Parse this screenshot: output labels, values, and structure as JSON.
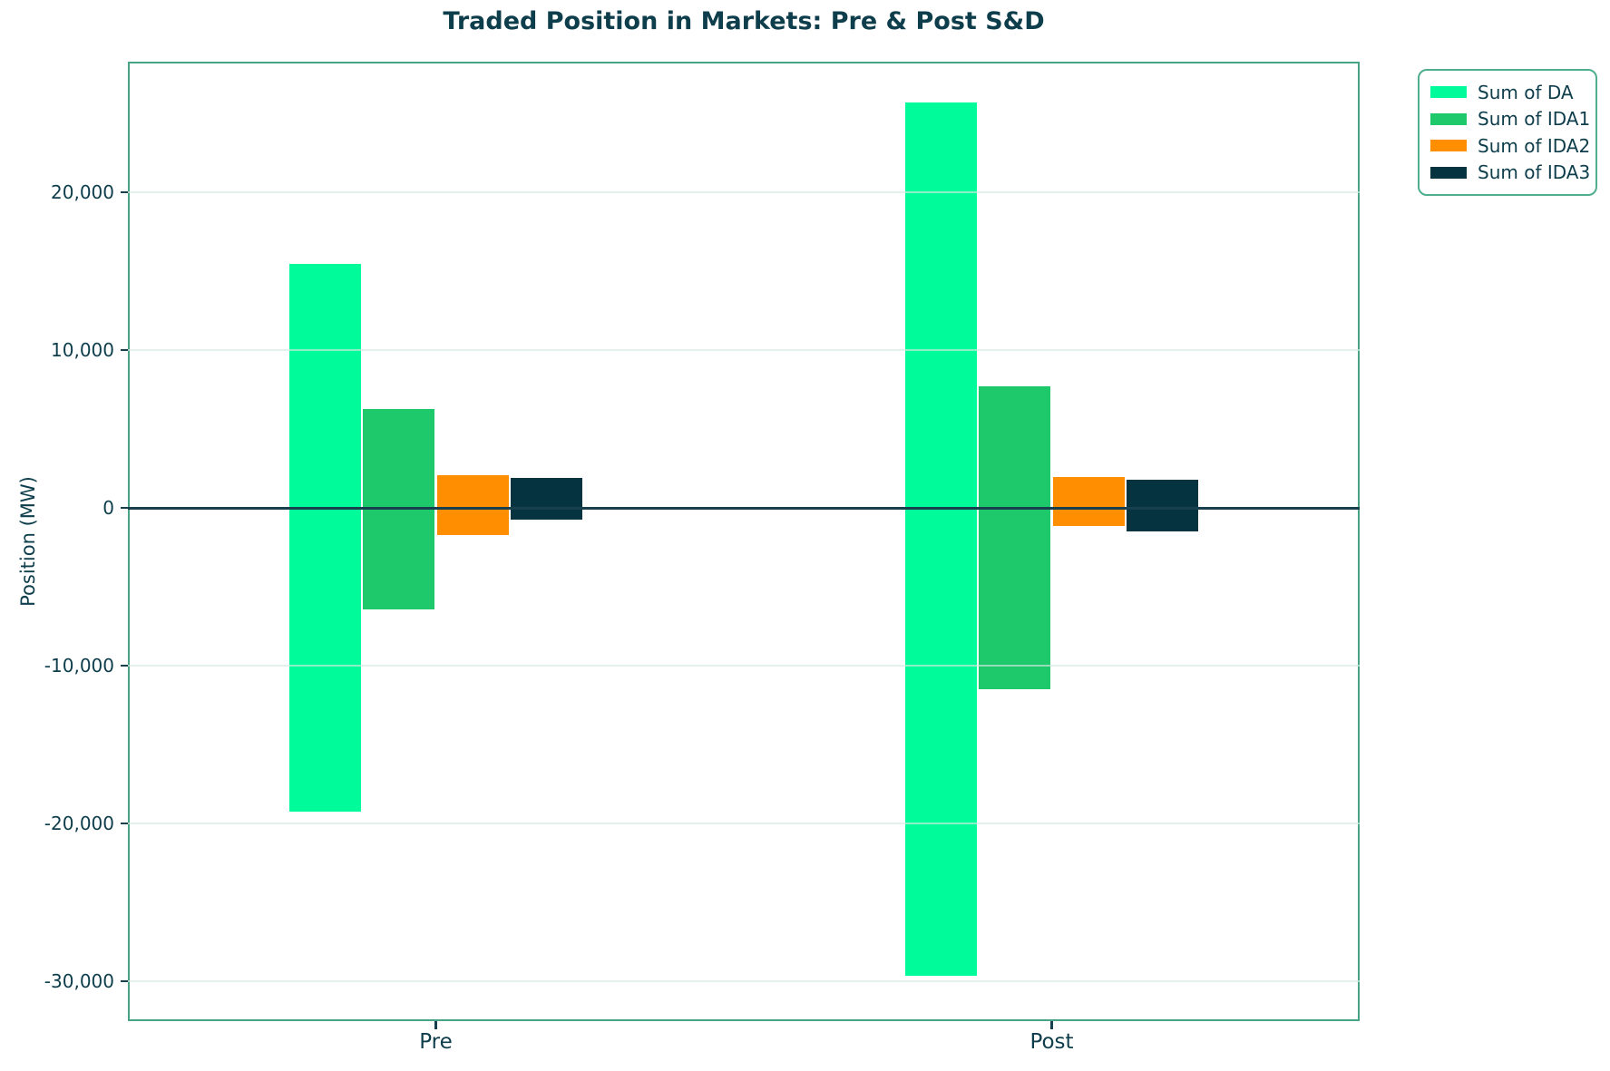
{
  "colors": {
    "text": "#0e3d4b",
    "spine": "#46a385",
    "grid": "#d5e8e1",
    "zero_line": "#173f4d",
    "legend_border": "#4fae8c",
    "background": "#ffffff"
  },
  "chart_data": {
    "type": "bar",
    "title": "Traded Position in Markets: Pre & Post S&D",
    "xlabel": "",
    "ylabel": "Position (MW)",
    "categories": [
      "Pre",
      "Post"
    ],
    "series": [
      {
        "name": "Sum of DA",
        "color": "#00fb9a",
        "values_pos": [
          15500,
          25700
        ],
        "values_neg": [
          -19250,
          -29650
        ]
      },
      {
        "name": "Sum of IDA1",
        "color": "#1ec96b",
        "values_pos": [
          6300,
          7700
        ],
        "values_neg": [
          -6400,
          -11450
        ]
      },
      {
        "name": "Sum of IDA2",
        "color": "#ff8f00",
        "values_pos": [
          2100,
          2000
        ],
        "values_neg": [
          -1700,
          -1100
        ]
      },
      {
        "name": "Sum of IDA3",
        "color": "#05333f",
        "values_pos": [
          1900,
          1800
        ],
        "values_neg": [
          -700,
          -1450
        ]
      }
    ],
    "ylim": [
      -32500,
      28300
    ],
    "yticks": [
      {
        "value": 20000,
        "label": "20,000"
      },
      {
        "value": 10000,
        "label": "10,000"
      },
      {
        "value": 0,
        "label": "0"
      },
      {
        "value": -10000,
        "label": "-10,000"
      },
      {
        "value": -20000,
        "label": "-20,000"
      },
      {
        "value": -30000,
        "label": "-30,000"
      }
    ],
    "zero_line_at": 0,
    "grid": true,
    "legend_position": "outside-upper-right",
    "legend_entries": [
      "Sum of DA",
      "Sum of IDA1",
      "Sum of IDA2",
      "Sum of IDA3"
    ]
  }
}
